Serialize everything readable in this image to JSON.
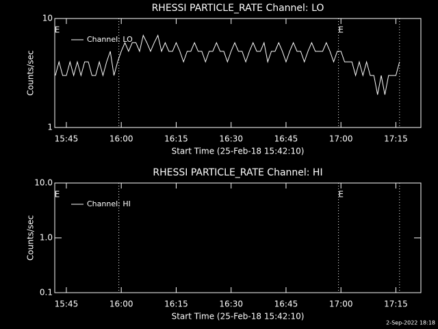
{
  "chart_data": [
    {
      "type": "line",
      "title": "RHESSI PARTICLE_RATE Channel: LO",
      "xlabel": "Start Time (25-Feb-18 15:42:10)",
      "ylabel": "Counts/sec",
      "log_y": true,
      "ylim": [
        1,
        10
      ],
      "yticks": [
        1,
        10
      ],
      "xlim": [
        "15:41:50",
        "17:21:50"
      ],
      "xticks": [
        "15:45",
        "16:00",
        "16:15",
        "16:30",
        "16:45",
        "17:00",
        "17:15"
      ],
      "vlines": [
        "15:59:20",
        "16:59:20",
        "17:16:00"
      ],
      "annotations": [
        {
          "text": "E",
          "x": "15:42:30"
        },
        {
          "text": "E",
          "x": "17:00:00"
        }
      ],
      "x": [
        "15:42",
        "15:43",
        "15:44",
        "15:45",
        "15:46",
        "15:47",
        "15:48",
        "15:49",
        "15:50",
        "15:51",
        "15:52",
        "15:53",
        "15:54",
        "15:55",
        "15:56",
        "15:57",
        "15:58",
        "15:59",
        "16:00",
        "16:01",
        "16:02",
        "16:03",
        "16:04",
        "16:05",
        "16:06",
        "16:07",
        "16:08",
        "16:09",
        "16:10",
        "16:11",
        "16:12",
        "16:13",
        "16:14",
        "16:15",
        "16:16",
        "16:17",
        "16:18",
        "16:19",
        "16:20",
        "16:21",
        "16:22",
        "16:23",
        "16:24",
        "16:25",
        "16:26",
        "16:27",
        "16:28",
        "16:29",
        "16:30",
        "16:31",
        "16:32",
        "16:33",
        "16:34",
        "16:35",
        "16:36",
        "16:37",
        "16:38",
        "16:39",
        "16:40",
        "16:41",
        "16:42",
        "16:43",
        "16:44",
        "16:45",
        "16:46",
        "16:47",
        "16:48",
        "16:49",
        "16:50",
        "16:51",
        "16:52",
        "16:53",
        "16:54",
        "16:55",
        "16:56",
        "16:57",
        "16:58",
        "16:59",
        "17:00",
        "17:01",
        "17:02",
        "17:03",
        "17:04",
        "17:05",
        "17:06",
        "17:07",
        "17:08",
        "17:09",
        "17:10",
        "17:11",
        "17:12",
        "17:13",
        "17:14",
        "17:15",
        "17:16"
      ],
      "series": [
        {
          "name": "Channel: LO",
          "color": "#ffffff",
          "values": [
            3,
            4,
            3,
            3,
            4,
            3,
            4,
            3,
            4,
            4,
            3,
            3,
            4,
            3,
            4,
            5,
            3,
            4,
            5,
            6,
            5,
            6,
            6,
            5,
            7,
            6,
            5,
            6,
            7,
            5,
            6,
            5,
            5,
            6,
            5,
            4,
            5,
            5,
            6,
            5,
            5,
            4,
            5,
            5,
            6,
            5,
            5,
            4,
            5,
            6,
            5,
            5,
            4,
            5,
            6,
            5,
            5,
            6,
            4,
            5,
            5,
            6,
            5,
            4,
            5,
            6,
            5,
            5,
            4,
            5,
            6,
            5,
            5,
            5,
            6,
            5,
            4,
            5,
            5,
            4,
            4,
            4,
            3,
            4,
            3,
            4,
            3,
            3,
            2,
            3,
            2,
            3,
            3,
            3,
            4
          ]
        }
      ]
    },
    {
      "type": "line",
      "title": "RHESSI PARTICLE_RATE Channel: HI",
      "xlabel": "Start Time (25-Feb-18 15:42:10)",
      "ylabel": "Counts/sec",
      "log_y": true,
      "ylim": [
        0.1,
        10
      ],
      "yticks": [
        0.1,
        {
          "value": 1,
          "label": "1.0"
        },
        {
          "value": 10,
          "label": "10.0"
        }
      ],
      "xlim": [
        "15:41:50",
        "17:21:50"
      ],
      "xticks": [
        "15:45",
        "16:00",
        "16:15",
        "16:30",
        "16:45",
        "17:00",
        "17:15"
      ],
      "vlines": [
        "15:59:20",
        "16:59:20",
        "17:16:00"
      ],
      "annotations": [
        {
          "text": "E",
          "x": "15:42:30"
        },
        {
          "text": "E",
          "x": "17:00:00"
        }
      ],
      "x": [],
      "series": [
        {
          "name": "Channel: HI",
          "color": "#ffffff",
          "values": []
        }
      ]
    }
  ],
  "footer": "2-Sep-2022 18:18"
}
